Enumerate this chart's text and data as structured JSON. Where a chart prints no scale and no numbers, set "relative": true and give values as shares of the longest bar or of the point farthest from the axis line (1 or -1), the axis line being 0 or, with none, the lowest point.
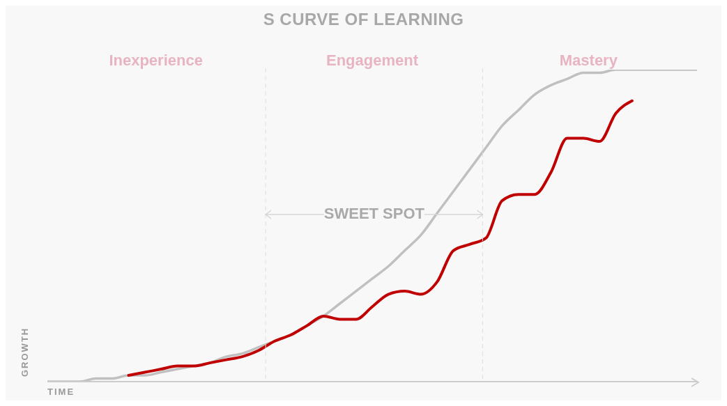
{
  "chart_data": {
    "type": "line",
    "title": "S CURVE OF LEARNING",
    "xlabel": "TIME",
    "ylabel": "GROWTH",
    "relative": true,
    "grid": false,
    "marker": "none",
    "line_style": "solid",
    "annotations": [
      "Inexperience",
      "Engagement",
      "Mastery",
      "SWEET SPOT"
    ],
    "categories": [
      null,
      null,
      null,
      null,
      null,
      null,
      null,
      null,
      null,
      null,
      null,
      null,
      null,
      null,
      null,
      null,
      null,
      null,
      null,
      null,
      null,
      null,
      null,
      null,
      null,
      null,
      null,
      null,
      null,
      null,
      null,
      null,
      null,
      null,
      null,
      null,
      null,
      null,
      null,
      null,
      null
    ],
    "series": [
      {
        "color": "#c0c0c0",
        "values": [
          0,
          0,
          0,
          0.01,
          0.01,
          0.02,
          0.02,
          0.03,
          0.04,
          0.05,
          0.06,
          0.08,
          0.09,
          0.11,
          0.13,
          0.15,
          0.18,
          0.21,
          0.25,
          0.29,
          0.33,
          0.37,
          0.42,
          0.47,
          0.54,
          0.61,
          0.68,
          0.75,
          0.82,
          0.87,
          0.92,
          0.95,
          0.97,
          0.99,
          0.99,
          1,
          1,
          1,
          1,
          1,
          1
        ]
      },
      {
        "color": "#c00000",
        "values": [
          null,
          null,
          null,
          null,
          null,
          0.02,
          0.03,
          0.04,
          0.05,
          0.05,
          0.06,
          0.07,
          0.08,
          0.1,
          0.13,
          0.15,
          0.18,
          0.21,
          0.2,
          0.2,
          0.24,
          0.28,
          0.29,
          0.28,
          0.32,
          0.42,
          0.44,
          0.46,
          0.58,
          0.6,
          0.6,
          0.67,
          0.78,
          0.78,
          0.77,
          0.86,
          0.9,
          null,
          null,
          null,
          null
        ]
      }
    ]
  }
}
